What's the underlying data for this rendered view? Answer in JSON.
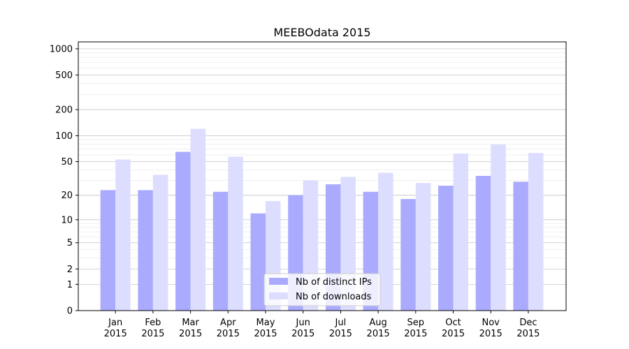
{
  "chart_data": {
    "type": "bar",
    "title": "MEEBOdata 2015",
    "xlabel": "",
    "ylabel": "",
    "yscale": "log1p",
    "ylim": [
      0,
      1200
    ],
    "yticks": [
      0,
      1,
      2,
      5,
      10,
      20,
      50,
      100,
      200,
      500,
      1000
    ],
    "categories": [
      [
        "Jan",
        "2015"
      ],
      [
        "Feb",
        "2015"
      ],
      [
        "Mar",
        "2015"
      ],
      [
        "Apr",
        "2015"
      ],
      [
        "May",
        "2015"
      ],
      [
        "Jun",
        "2015"
      ],
      [
        "Jul",
        "2015"
      ],
      [
        "Aug",
        "2015"
      ],
      [
        "Sep",
        "2015"
      ],
      [
        "Oct",
        "2015"
      ],
      [
        "Nov",
        "2015"
      ],
      [
        "Dec",
        "2015"
      ]
    ],
    "series": [
      {
        "name": "Nb of distinct IPs",
        "color": "#aaaaff",
        "values": [
          23,
          23,
          65,
          22,
          12,
          20,
          27,
          22,
          18,
          26,
          34,
          29
        ]
      },
      {
        "name": "Nb of downloads",
        "color": "#ddddff",
        "values": [
          53,
          35,
          120,
          57,
          17,
          30,
          33,
          37,
          28,
          62,
          79,
          63
        ]
      }
    ],
    "grid": true,
    "legend_position": "bottom-center"
  }
}
